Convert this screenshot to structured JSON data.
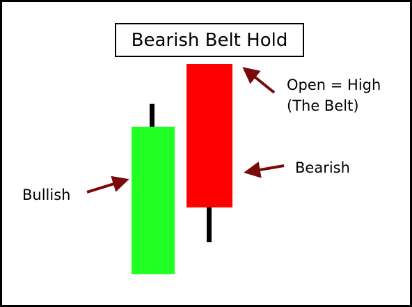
{
  "title": "Bearish Belt Hold",
  "labels": {
    "open_high_line1": "Open = High",
    "open_high_line2": "(The Belt)",
    "bearish": "Bearish",
    "bullish": "Bullish"
  },
  "colors": {
    "bullish": "#22ff22",
    "bearish": "#ff0000",
    "arrow": "#7a0a0a",
    "wick": "#000000"
  }
}
